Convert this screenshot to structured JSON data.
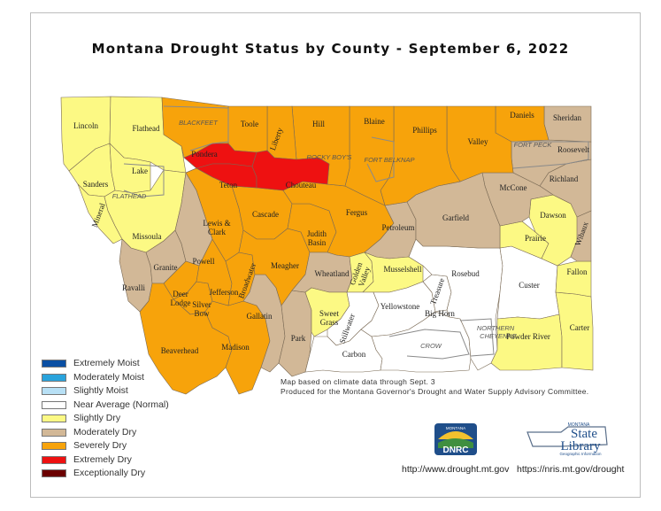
{
  "title": "Montana Drought Status by County - September 6, 2022",
  "colors": {
    "extremely_moist": "#0a4fa3",
    "moderately_moist": "#29a3dc",
    "slightly_moist": "#b8e0f5",
    "near_average": "#ffffff",
    "slightly_dry": "#fcf984",
    "moderately_dry": "#d2b897",
    "severely_dry": "#f7a30b",
    "extremely_dry": "#ee1111",
    "exceptionally_dry": "#6b0000"
  },
  "legend": [
    {
      "label": "Extremely Moist",
      "color": "#0a4fa3"
    },
    {
      "label": "Moderately Moist",
      "color": "#29a3dc"
    },
    {
      "label": "Slightly Moist",
      "color": "#b8e0f5"
    },
    {
      "label": "Near Average (Normal)",
      "color": "#ffffff"
    },
    {
      "label": "Slightly Dry",
      "color": "#fcf984"
    },
    {
      "label": "Moderately Dry",
      "color": "#d2b897"
    },
    {
      "label": "Severely Dry",
      "color": "#f7a30b"
    },
    {
      "label": "Extremely Dry",
      "color": "#ee1111"
    },
    {
      "label": "Exceptionally Dry",
      "color": "#6b0000"
    }
  ],
  "notes": {
    "line1": "Map based on climate data through Sept. 3",
    "line2": "Produced for the Montana Governor's Drought and Water Supply Advisory Committee."
  },
  "logos": {
    "dnrc": "DNRC",
    "dnrc_top": "MONTANA",
    "library_top": "MONTANA",
    "library_main1": "State",
    "library_main2": "Library",
    "library_sub": "Geographic Information"
  },
  "urls": {
    "drought": "http://www.drought.mt.gov",
    "nris": "https://nris.mt.gov/drought"
  },
  "counties": [
    {
      "name": "Lincoln",
      "status": "Slightly Dry"
    },
    {
      "name": "Flathead",
      "status": "Slightly Dry"
    },
    {
      "name": "Sanders",
      "status": "Slightly Dry"
    },
    {
      "name": "Lake",
      "status": "Slightly Dry"
    },
    {
      "name": "Mineral",
      "status": "Slightly Dry"
    },
    {
      "name": "Missoula",
      "status": "Slightly Dry"
    },
    {
      "name": "Ravalli",
      "status": "Moderately Dry"
    },
    {
      "name": "Granite",
      "status": "Moderately Dry"
    },
    {
      "name": "Powell",
      "status": "Moderately Dry"
    },
    {
      "name": "Deer Lodge",
      "status": "Severely Dry"
    },
    {
      "name": "Silver Bow",
      "status": "Severely Dry"
    },
    {
      "name": "Beaverhead",
      "status": "Severely Dry"
    },
    {
      "name": "Madison",
      "status": "Severely Dry"
    },
    {
      "name": "Jefferson",
      "status": "Severely Dry"
    },
    {
      "name": "Broadwater",
      "status": "Severely Dry"
    },
    {
      "name": "Gallatin",
      "status": "Moderately Dry"
    },
    {
      "name": "Park",
      "status": "Moderately Dry"
    },
    {
      "name": "Lewis & Clark",
      "status": "Severely Dry"
    },
    {
      "name": "Cascade",
      "status": "Severely Dry"
    },
    {
      "name": "Meagher",
      "status": "Severely Dry"
    },
    {
      "name": "Judith Basin",
      "status": "Severely Dry"
    },
    {
      "name": "Fergus",
      "status": "Severely Dry"
    },
    {
      "name": "Petroleum",
      "status": "Moderately Dry"
    },
    {
      "name": "Wheatland",
      "status": "Moderately Dry"
    },
    {
      "name": "Golden Valley",
      "status": "Slightly Dry"
    },
    {
      "name": "Musselshell",
      "status": "Slightly Dry"
    },
    {
      "name": "Sweet Grass",
      "status": "Slightly Dry"
    },
    {
      "name": "Stillwater",
      "status": "Near Average (Normal)"
    },
    {
      "name": "Carbon",
      "status": "Near Average (Normal)"
    },
    {
      "name": "Yellowstone",
      "status": "Near Average (Normal)"
    },
    {
      "name": "Big Horn",
      "status": "Near Average (Normal)"
    },
    {
      "name": "Treasure",
      "status": "Near Average (Normal)"
    },
    {
      "name": "Rosebud",
      "status": "Near Average (Normal)"
    },
    {
      "name": "Custer",
      "status": "Near Average (Normal)"
    },
    {
      "name": "Powder River",
      "status": "Slightly Dry"
    },
    {
      "name": "Carter",
      "status": "Slightly Dry"
    },
    {
      "name": "Fallon",
      "status": "Slightly Dry"
    },
    {
      "name": "Prairie",
      "status": "Slightly Dry"
    },
    {
      "name": "Dawson",
      "status": "Slightly Dry"
    },
    {
      "name": "Wibaux",
      "status": "Moderately Dry"
    },
    {
      "name": "Richland",
      "status": "Moderately Dry"
    },
    {
      "name": "McCone",
      "status": "Moderately Dry"
    },
    {
      "name": "Garfield",
      "status": "Moderately Dry"
    },
    {
      "name": "Roosevelt",
      "status": "Moderately Dry"
    },
    {
      "name": "Sheridan",
      "status": "Moderately Dry"
    },
    {
      "name": "Daniels",
      "status": "Severely Dry"
    },
    {
      "name": "Valley",
      "status": "Severely Dry"
    },
    {
      "name": "Phillips",
      "status": "Severely Dry"
    },
    {
      "name": "Blaine",
      "status": "Severely Dry"
    },
    {
      "name": "Hill",
      "status": "Severely Dry"
    },
    {
      "name": "Liberty",
      "status": "Severely Dry"
    },
    {
      "name": "Toole",
      "status": "Severely Dry"
    },
    {
      "name": "Glacier",
      "status": "Severely Dry"
    },
    {
      "name": "Pondera",
      "status": "Extremely Dry"
    },
    {
      "name": "Teton",
      "status": "Extremely Dry"
    },
    {
      "name": "Chouteau",
      "status": "Extremely Dry"
    }
  ],
  "reservations": [
    "BLACKFEET",
    "ROCKY BOY'S",
    "FORT BELKNAP",
    "FORT PECK",
    "FLATHEAD",
    "CROW",
    "NORTHERN",
    "CHEYENNE"
  ]
}
